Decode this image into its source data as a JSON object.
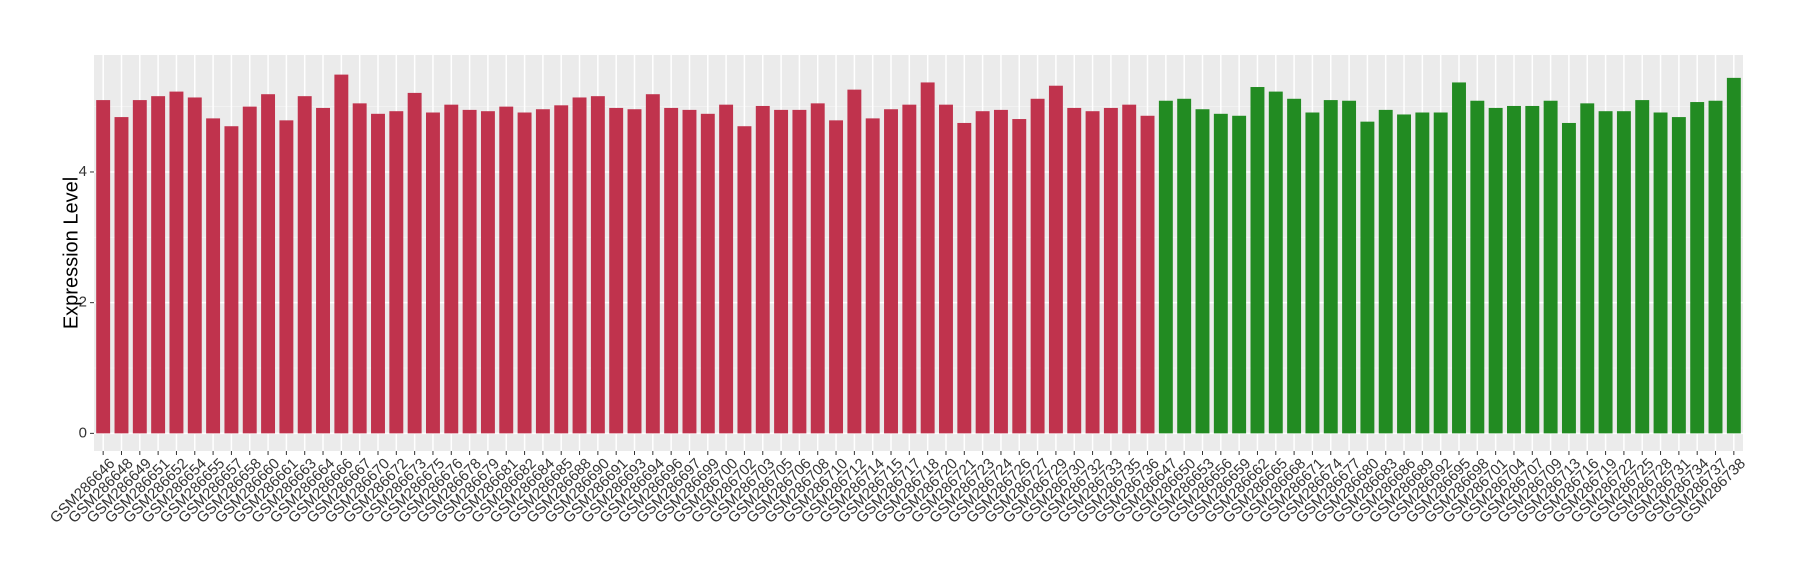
{
  "chart_data": {
    "type": "bar",
    "y_label": "Expression Level",
    "ylim": [
      -0.27,
      5.79
    ],
    "yticks": [
      0,
      2,
      4
    ],
    "yminor": [
      1,
      3,
      5
    ],
    "grid": true,
    "groups": [
      {
        "color": "#c0334d",
        "categories": [
          "GSM286646",
          "GSM286648",
          "GSM286649",
          "GSM286651",
          "GSM286652",
          "GSM286654",
          "GSM286655",
          "GSM286657",
          "GSM286658",
          "GSM286660",
          "GSM286661",
          "GSM286663",
          "GSM286664",
          "GSM286666",
          "GSM286667",
          "GSM286670",
          "GSM286672",
          "GSM286673",
          "GSM286675",
          "GSM286676",
          "GSM286678",
          "GSM286679",
          "GSM286681",
          "GSM286682",
          "GSM286684",
          "GSM286685",
          "GSM286688",
          "GSM286690",
          "GSM286691",
          "GSM286693",
          "GSM286694",
          "GSM286696",
          "GSM286697",
          "GSM286699",
          "GSM286700",
          "GSM286702",
          "GSM286703",
          "GSM286705",
          "GSM286706",
          "GSM286708",
          "GSM286710",
          "GSM286712",
          "GSM286714",
          "GSM286715",
          "GSM286717",
          "GSM286718",
          "GSM286720",
          "GSM286721",
          "GSM286723",
          "GSM286724",
          "GSM286726",
          "GSM286727",
          "GSM286729",
          "GSM286730",
          "GSM286732",
          "GSM286733",
          "GSM286735",
          "GSM286736"
        ],
        "values": [
          5.1,
          4.84,
          5.1,
          5.16,
          5.23,
          5.14,
          4.82,
          4.7,
          5.0,
          5.19,
          4.79,
          5.16,
          4.98,
          5.49,
          5.05,
          4.89,
          4.93,
          5.21,
          4.91,
          5.03,
          4.95,
          4.93,
          5.0,
          4.91,
          4.96,
          5.02,
          5.14,
          5.16,
          4.98,
          4.96,
          5.19,
          4.98,
          4.95,
          4.89,
          5.03,
          4.7,
          5.01,
          4.95,
          4.95,
          5.05,
          4.79,
          5.26,
          4.82,
          4.96,
          5.03,
          5.37,
          5.03,
          4.75,
          4.93,
          4.95,
          4.81,
          5.12,
          5.32,
          4.98,
          4.93,
          4.98,
          5.03,
          4.86
        ]
      },
      {
        "color": "#228b22",
        "categories": [
          "GSM286647",
          "GSM286650",
          "GSM286653",
          "GSM286656",
          "GSM286659",
          "GSM286662",
          "GSM286665",
          "GSM286668",
          "GSM286671",
          "GSM286674",
          "GSM286677",
          "GSM286680",
          "GSM286683",
          "GSM286686",
          "GSM286689",
          "GSM286692",
          "GSM286695",
          "GSM286698",
          "GSM286701",
          "GSM286704",
          "GSM286707",
          "GSM286709",
          "GSM286713",
          "GSM286716",
          "GSM286719",
          "GSM286722",
          "GSM286725",
          "GSM286728",
          "GSM286731",
          "GSM286734",
          "GSM286737",
          "GSM286738"
        ],
        "values": [
          5.09,
          5.12,
          4.96,
          4.89,
          4.86,
          5.3,
          5.23,
          5.12,
          4.91,
          5.1,
          5.09,
          4.77,
          4.95,
          4.88,
          4.91,
          4.91,
          5.37,
          5.09,
          4.98,
          5.01,
          5.01,
          5.09,
          4.75,
          5.05,
          4.93,
          4.93,
          5.1,
          4.91,
          4.84,
          5.07,
          5.09,
          5.44
        ]
      }
    ]
  }
}
